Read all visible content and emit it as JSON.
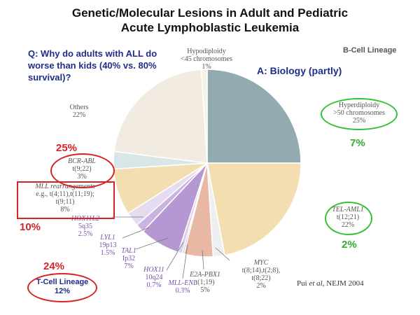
{
  "title": {
    "line1": "Genetic/Molecular Lesions in Adult and Pediatric",
    "line2": "Acute Lymphoblastic Leukemia"
  },
  "question": "Q: Why do adults with ALL do worse than kids (40% vs. 80% survival)?",
  "answer": "A: Biology (partly)",
  "lineage_label": "B-Cell Lineage",
  "citation": {
    "author": "Pui",
    "rest": " et al",
    "journal": ", NEJM 2004"
  },
  "tcell": {
    "label": "T-Cell Lineage",
    "value": "12%"
  },
  "adult_pcts": {
    "hyperdiploidy": "7%",
    "tel_aml1": "2%",
    "bcr_abl": "25%",
    "mll": "10%",
    "tcell": "24%"
  },
  "labels": {
    "hypodiploidy": [
      "Hypodiploidy",
      "<45 chromosomes",
      "1%"
    ],
    "hyperdiploidy": [
      "Hyperdiploidy",
      ">50 chromosomes",
      "25%"
    ],
    "tel_aml1": [
      "TEL-AML1",
      "t(12;21)",
      "22%"
    ],
    "myc": [
      "MYC",
      "t(8;14),t(2;8),",
      "t(8;22)",
      "2%"
    ],
    "e2a_pbx1": [
      "E2A-PBX1",
      "t(1;19)",
      "5%"
    ],
    "mll_enl": [
      "MLL-ENL",
      "0.3%"
    ],
    "hox11": [
      "HOX11",
      "10q24",
      "0.7%"
    ],
    "tal1": [
      "TAL1",
      "Ip32",
      "7%"
    ],
    "lyl1": [
      "LYL1",
      "19p13",
      "1.5%"
    ],
    "hox11l2": [
      "HOX11L2",
      "5q35",
      "2.5%"
    ],
    "mll": [
      "MLL rearrangements",
      "e.g., t(4;11),t(11;19);",
      "t(9;11)",
      "8%"
    ],
    "bcr_abl": [
      "BCR-ABL",
      "t(9;22)",
      "3%"
    ],
    "others": [
      "Others",
      "22%"
    ]
  },
  "chart_data": {
    "type": "pie",
    "title": "Genetic/Molecular Lesions in Adult and Pediatric Acute Lymphoblastic Leukemia",
    "slices": [
      {
        "name": "Hyperdiploidy >50 chromosomes",
        "value": 25,
        "color": "#92aab0",
        "group": "B-Cell"
      },
      {
        "name": "TEL-AML1 t(12;21)",
        "value": 22,
        "color": "#f2deb0",
        "group": "B-Cell"
      },
      {
        "name": "MYC",
        "value": 2,
        "color": "#eef0f0",
        "group": "B-Cell"
      },
      {
        "name": "E2A-PBX1 t(1;19)",
        "value": 5,
        "color": "#e8b8a4",
        "group": "B-Cell"
      },
      {
        "name": "MLL-ENL",
        "value": 0.3,
        "color": "#c7b3d9",
        "group": "T-Cell"
      },
      {
        "name": "HOX11 10q24",
        "value": 0.7,
        "color": "#ddd0ea",
        "group": "T-Cell"
      },
      {
        "name": "TAL1 Ip32",
        "value": 7,
        "color": "#b597d2",
        "group": "T-Cell"
      },
      {
        "name": "LYL1 19p13",
        "value": 1.5,
        "color": "#c9b3e0",
        "group": "T-Cell"
      },
      {
        "name": "HOX11L2 5q35",
        "value": 2.5,
        "color": "#e6dcf0",
        "group": "T-Cell"
      },
      {
        "name": "MLL rearrangements",
        "value": 8,
        "color": "#f2deb0",
        "group": "B-Cell"
      },
      {
        "name": "BCR-ABL t(9;22)",
        "value": 3,
        "color": "#d8e6e8",
        "group": "B-Cell"
      },
      {
        "name": "Others",
        "value": 22,
        "color": "#f1ebe1",
        "group": "B-Cell"
      },
      {
        "name": "Hypodiploidy <45 chromosomes",
        "value": 1,
        "color": "#f5f2e8",
        "group": "B-Cell"
      }
    ],
    "start": "12 o'clock, clockwise"
  }
}
